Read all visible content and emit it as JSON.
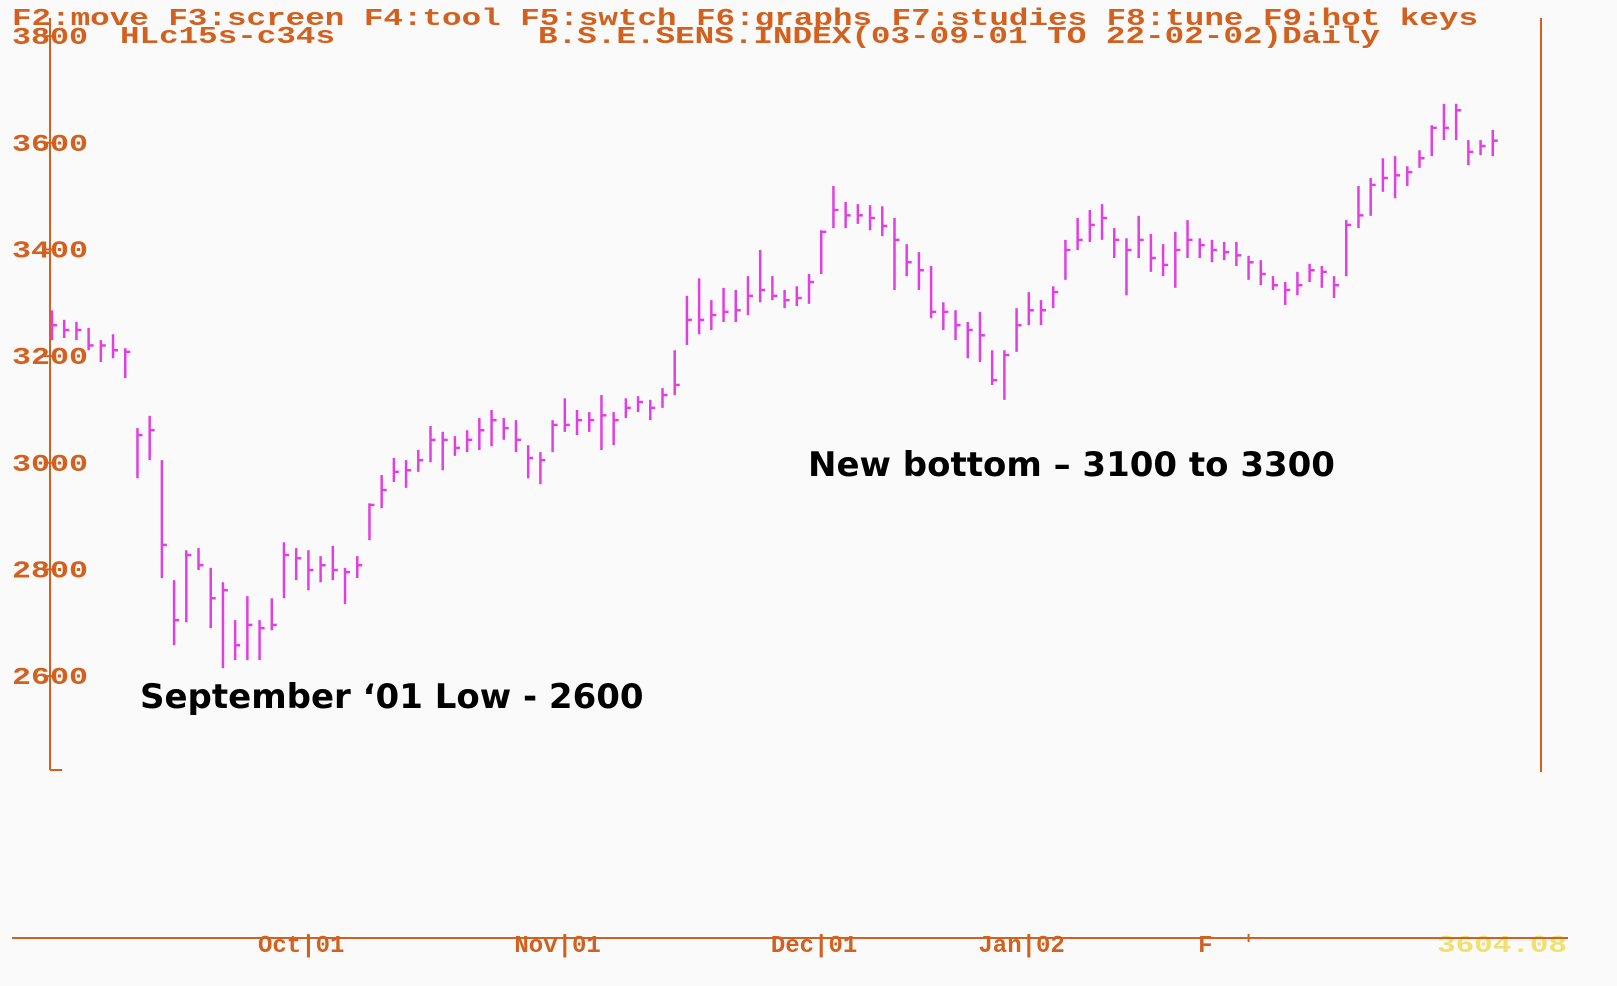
{
  "chart_data": {
    "type": "hlc",
    "menu": "F2:move F3:screen F4:tool F5:swtch F6:graphs F7:studies F8:tune F9:hot keys",
    "study": "HLc15s-c34s",
    "title": "B.S.E.SENS.INDEX(03-09-01 TO 22-02-02)Daily",
    "annotations": [
      "New bottom – 3100 to 3300",
      "September ‘01 Low - 2600"
    ],
    "readout": "3604.08",
    "color": "#e040e0",
    "axis_color": "#d2601e",
    "ylim": [
      2424,
      3834
    ],
    "yticks": [
      2600,
      2800,
      3000,
      3200,
      3400,
      3600,
      3800
    ],
    "categories": [
      null,
      null,
      null,
      null,
      null,
      null,
      null,
      null,
      null,
      null,
      null,
      null,
      null,
      null,
      null,
      null,
      null,
      null,
      null,
      null,
      null,
      "Oct|01",
      null,
      null,
      null,
      null,
      null,
      null,
      null,
      null,
      null,
      null,
      null,
      null,
      null,
      null,
      null,
      null,
      null,
      null,
      null,
      null,
      "Nov|01",
      null,
      null,
      null,
      null,
      null,
      null,
      null,
      null,
      null,
      null,
      null,
      null,
      null,
      null,
      null,
      null,
      null,
      null,
      null,
      null,
      "Dec|01",
      null,
      null,
      null,
      null,
      null,
      null,
      null,
      null,
      null,
      null,
      null,
      null,
      null,
      null,
      null,
      null,
      "Jan|02",
      null,
      null,
      null,
      null,
      null,
      null,
      null,
      null,
      null,
      null,
      null,
      null,
      null,
      null,
      null,
      null,
      null,
      "F",
      null,
      null,
      null,
      null,
      null,
      null,
      null,
      null,
      null,
      null,
      null,
      null,
      null,
      null,
      null,
      null,
      null,
      null,
      null,
      null
    ],
    "high": [
      3286,
      3268,
      3264,
      3253,
      3230,
      3241,
      3215,
      3065,
      3088,
      3005,
      2780,
      2836,
      2840,
      2803,
      2776,
      2705,
      2750,
      2705,
      2746,
      2851,
      2840,
      2836,
      2825,
      2844,
      2803,
      2825,
      2924,
      2977,
      3009,
      3005,
      3024,
      3069,
      3058,
      3050,
      3061,
      3084,
      3099,
      3084,
      3080,
      3033,
      3020,
      3080,
      3121,
      3099,
      3095,
      3127,
      3095,
      3121,
      3125,
      3118,
      3140,
      3211,
      3313,
      3346,
      3305,
      3328,
      3324,
      3350,
      3399,
      3350,
      3324,
      3331,
      3354,
      3436,
      3519,
      3489,
      3485,
      3483,
      3481,
      3459,
      3410,
      3395,
      3369,
      3301,
      3286,
      3264,
      3283,
      3211,
      3211,
      3290,
      3320,
      3305,
      3331,
      3418,
      3459,
      3474,
      3485,
      3440,
      3421,
      3463,
      3429,
      3410,
      3433,
      3455,
      3421,
      3418,
      3414,
      3414,
      3388,
      3380,
      3350,
      3339,
      3358,
      3373,
      3369,
      3350,
      3455,
      3519,
      3534,
      3571,
      3575,
      3556,
      3586,
      3633,
      3673,
      3673,
      3605,
      3605,
      3624
    ],
    "low": [
      3230,
      3234,
      3230,
      3211,
      3189,
      3196,
      3159,
      2971,
      3005,
      2784,
      2658,
      2701,
      2799,
      2690,
      2615,
      2630,
      2630,
      2630,
      2686,
      2746,
      2780,
      2761,
      2776,
      2780,
      2735,
      2784,
      2855,
      2915,
      2964,
      2953,
      2983,
      3001,
      2986,
      3013,
      3020,
      3024,
      3031,
      3043,
      3020,
      2971,
      2960,
      3020,
      3058,
      3052,
      3058,
      3024,
      3033,
      3084,
      3095,
      3080,
      3103,
      3127,
      3221,
      3241,
      3249,
      3264,
      3264,
      3277,
      3301,
      3305,
      3290,
      3294,
      3298,
      3354,
      3440,
      3440,
      3448,
      3436,
      3425,
      3324,
      3350,
      3324,
      3271,
      3249,
      3230,
      3196,
      3189,
      3146,
      3118,
      3208,
      3258,
      3258,
      3290,
      3343,
      3399,
      3414,
      3418,
      3384,
      3314,
      3384,
      3358,
      3350,
      3328,
      3384,
      3384,
      3376,
      3380,
      3369,
      3343,
      3333,
      3324,
      3296,
      3314,
      3339,
      3328,
      3309,
      3350,
      3440,
      3463,
      3508,
      3496,
      3519,
      3553,
      3575,
      3605,
      3605,
      3558,
      3577,
      3575
    ],
    "close": [
      3258,
      3249,
      3249,
      3220,
      3220,
      3211,
      3208,
      3052,
      3061,
      2846,
      2705,
      2827,
      2808,
      2746,
      2761,
      2658,
      2696,
      2690,
      2696,
      2827,
      2821,
      2799,
      2808,
      2799,
      2795,
      2808,
      2921,
      2949,
      2983,
      2986,
      3005,
      3043,
      3043,
      3028,
      3043,
      3061,
      3080,
      3065,
      3043,
      3009,
      3005,
      3071,
      3071,
      3080,
      3080,
      3089,
      3080,
      3103,
      3114,
      3103,
      3127,
      3146,
      3268,
      3268,
      3277,
      3283,
      3286,
      3313,
      3324,
      3313,
      3305,
      3309,
      3339,
      3433,
      3474,
      3464,
      3464,
      3459,
      3444,
      3418,
      3376,
      3361,
      3283,
      3283,
      3258,
      3249,
      3239,
      3155,
      3202,
      3258,
      3286,
      3286,
      3320,
      3399,
      3418,
      3446,
      3459,
      3418,
      3399,
      3418,
      3384,
      3371,
      3399,
      3418,
      3408,
      3399,
      3395,
      3389,
      3376,
      3354,
      3333,
      3324,
      3333,
      3361,
      3358,
      3333,
      3446,
      3464,
      3521,
      3534,
      3539,
      3545,
      3571,
      3628,
      3628,
      3661,
      3583,
      3594,
      3604
    ]
  }
}
